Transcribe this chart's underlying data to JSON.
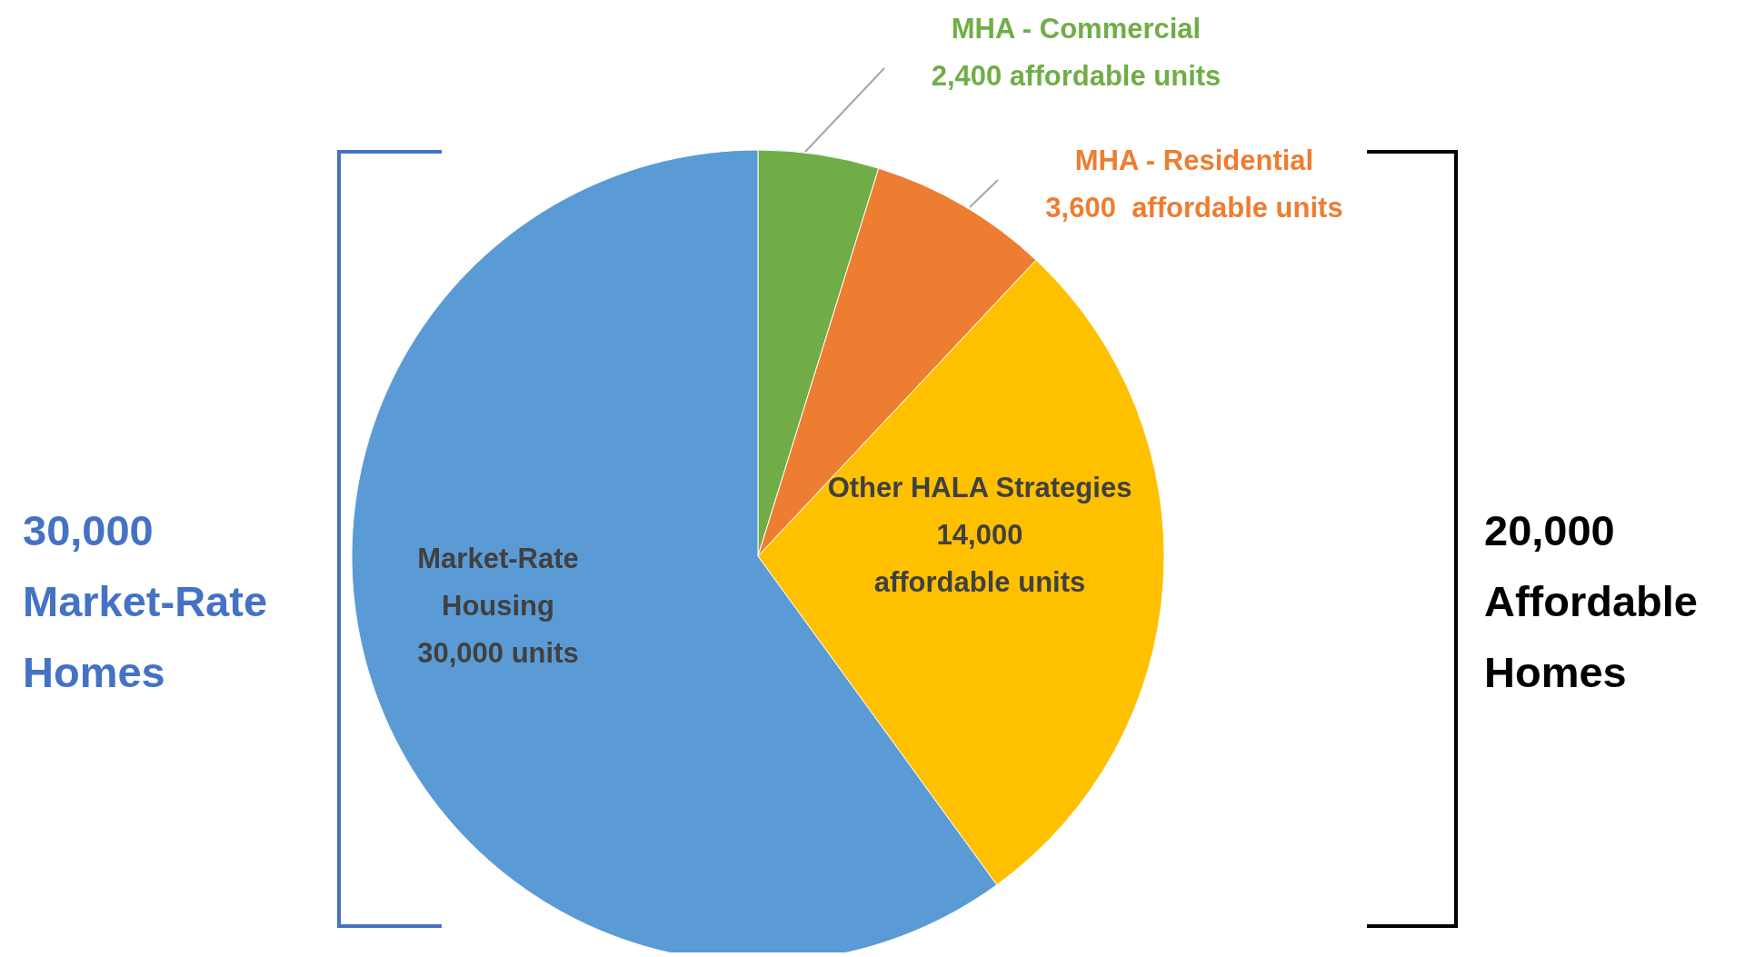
{
  "chart_data": {
    "type": "pie",
    "categories": [
      "MHA - Commercial",
      "MHA - Residential",
      "Other HALA Strategies",
      "Market-Rate Housing"
    ],
    "values": [
      2400,
      3600,
      14000,
      30000
    ],
    "colors": [
      "#70ad47",
      "#ed7d31",
      "#ffc000",
      "#5b9bd5"
    ],
    "value_labels": [
      "2,400 affordable units",
      "3,600  affordable units",
      "14,000 affordable units",
      "30,000 units"
    ],
    "annotations": [
      "30,000 Market-Rate Homes",
      "20,000 Affordable Homes"
    ]
  }
}
